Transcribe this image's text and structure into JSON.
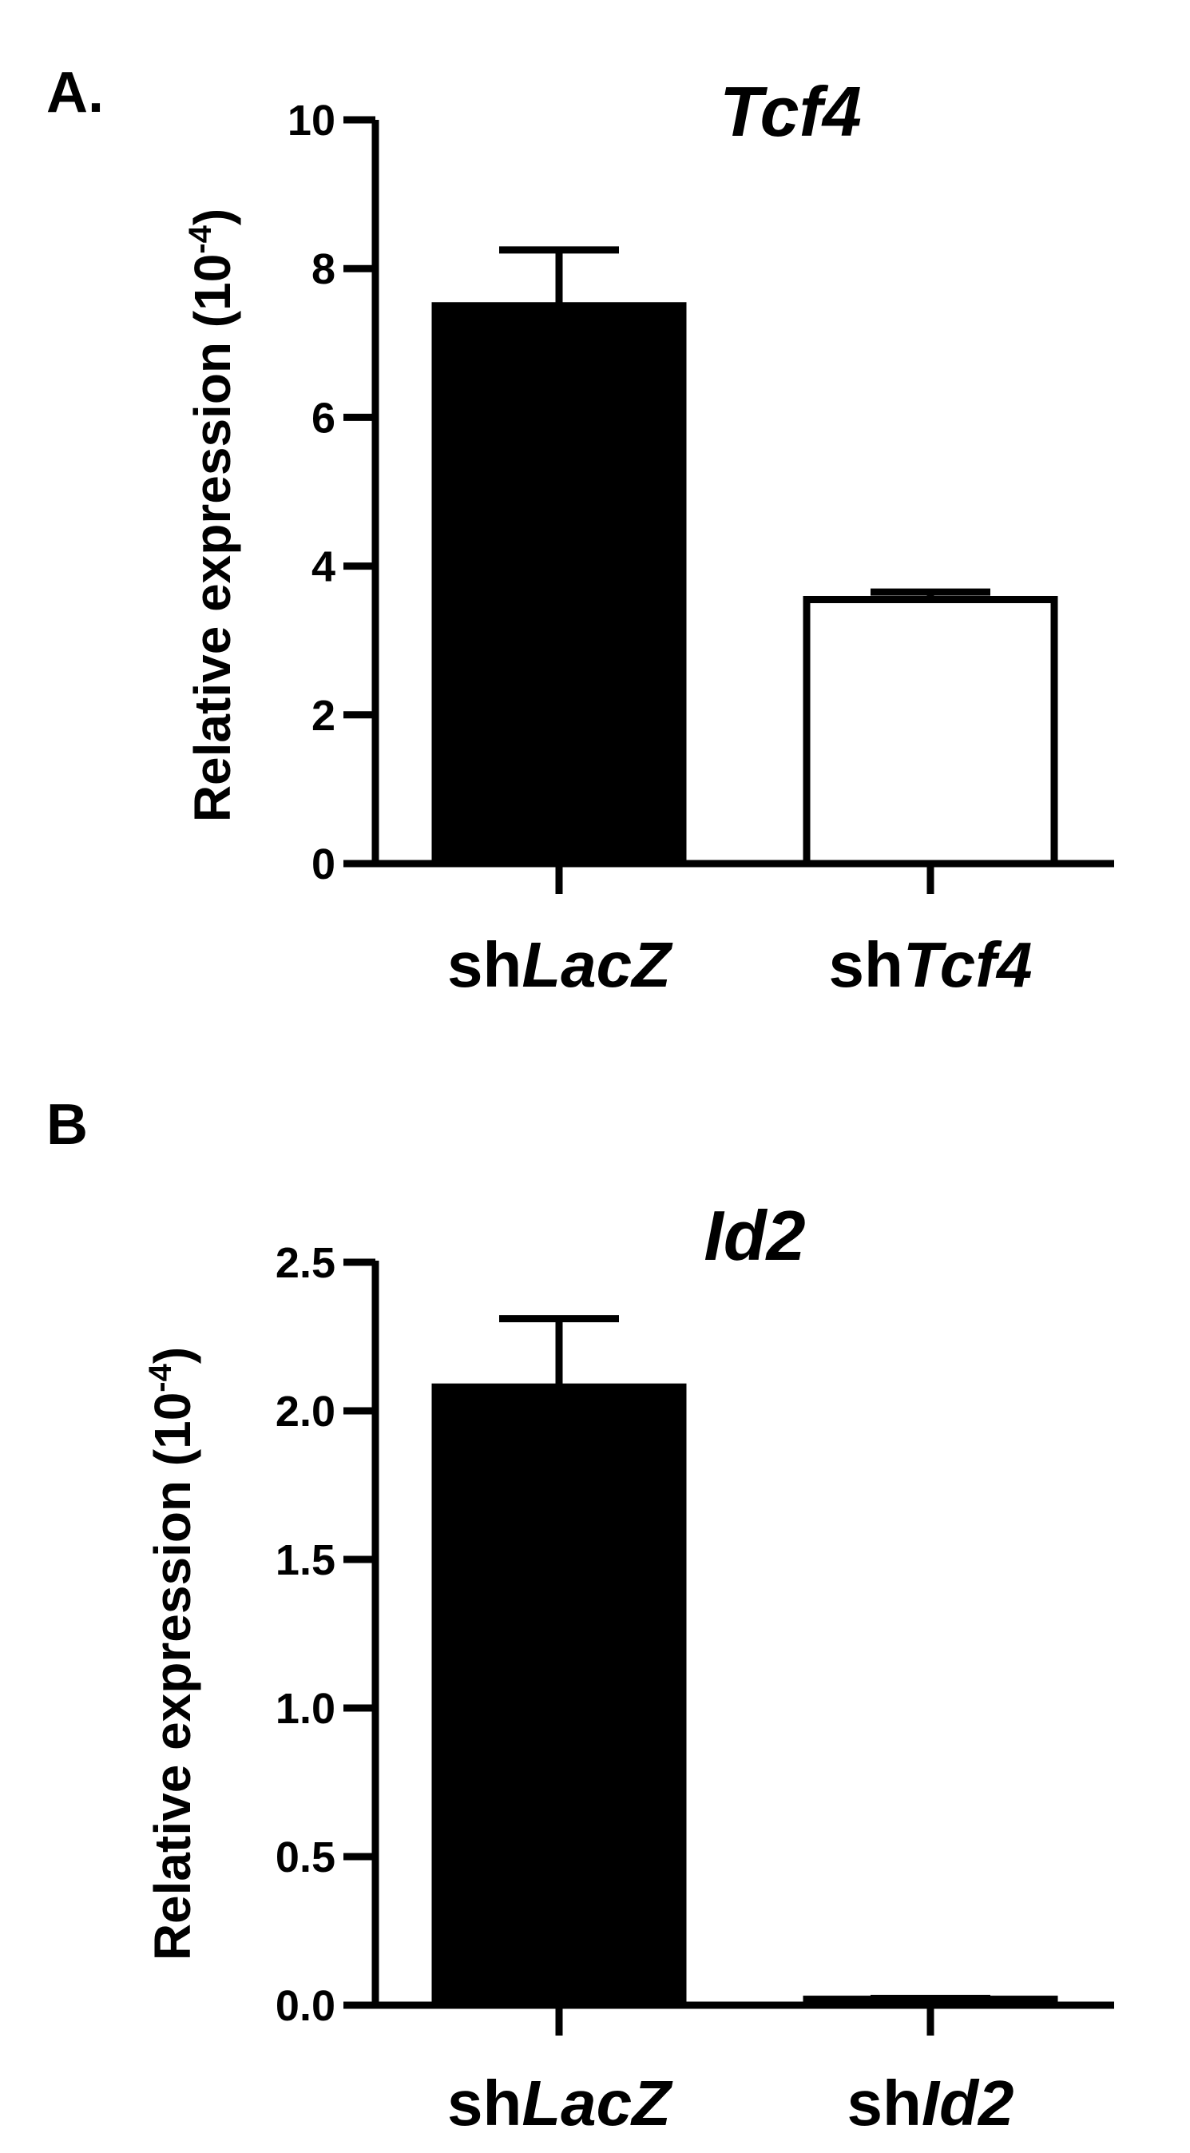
{
  "chart_data": [
    {
      "panel_label": "A.",
      "type": "bar",
      "title": "Tcf4",
      "ylabel": "Relative expression (10",
      "ylabel_sup": "-4",
      "ylabel_close": ")",
      "ylim": [
        0,
        10
      ],
      "yticks": [
        "0",
        "2",
        "4",
        "6",
        "8",
        "10"
      ],
      "categories": [
        {
          "prefix": "sh",
          "name": "LacZ"
        },
        {
          "prefix": "sh",
          "name": "Tcf4"
        }
      ],
      "values": [
        7.5,
        3.55
      ],
      "errors": [
        0.75,
        0.1
      ],
      "bar_fill": [
        "#000000",
        "#ffffff"
      ]
    },
    {
      "panel_label": "B",
      "type": "bar",
      "title": "Id2",
      "ylabel": "Relative expression (10",
      "ylabel_sup": "-4",
      "ylabel_close": ")",
      "ylim": [
        0,
        2.5
      ],
      "yticks": [
        "0.0",
        "0.5",
        "1.0",
        "1.5",
        "2.0",
        "2.5"
      ],
      "categories": [
        {
          "prefix": "sh",
          "name": "LacZ"
        },
        {
          "prefix": "sh",
          "name": "Id2"
        }
      ],
      "values": [
        2.08,
        0.02
      ],
      "errors": [
        0.23,
        0.003
      ],
      "bar_fill": [
        "#000000",
        "#000000"
      ]
    }
  ]
}
